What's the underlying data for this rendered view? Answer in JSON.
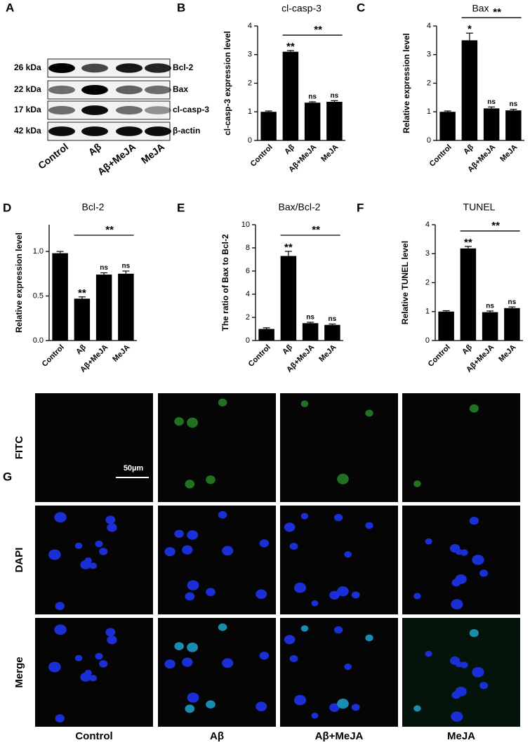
{
  "panels": [
    "A",
    "B",
    "C",
    "D",
    "E",
    "F",
    "G"
  ],
  "blot": {
    "kda": [
      "26 kDa",
      "22 kDa",
      "17 kDa",
      "42 kDa"
    ],
    "proteins": [
      "Bcl-2",
      "Bax",
      "cl-casp-3",
      "β-actin"
    ],
    "lanes": [
      "Control",
      "Aβ",
      "Aβ+MeJA",
      "MeJA"
    ]
  },
  "chart_data": [
    {
      "type": "bar",
      "title": "cl-casp-3",
      "y_label": "cl-casp-3 expression level",
      "categories": [
        "Control",
        "Aβ",
        "Aβ+MeJA",
        "MeJA"
      ],
      "values": [
        1.0,
        3.1,
        1.32,
        1.35
      ],
      "errors": [
        0.03,
        0.04,
        0.03,
        0.04
      ],
      "significance": [
        null,
        "**",
        "ns",
        "ns"
      ],
      "bracket_label": "**",
      "color": "#000000",
      "ylim": [
        0,
        4
      ],
      "yticks": [
        0,
        1,
        2,
        3,
        4
      ]
    },
    {
      "type": "bar",
      "title": "Bax",
      "y_label": "Relative expression level",
      "categories": [
        "Control",
        "Aβ",
        "Aβ+MeJA",
        "MeJA"
      ],
      "values": [
        1.0,
        3.5,
        1.12,
        1.05
      ],
      "errors": [
        0.03,
        0.25,
        0.05,
        0.04
      ],
      "significance": [
        null,
        "*",
        "ns",
        "ns"
      ],
      "bracket_label": "**",
      "color": "#000000",
      "ylim": [
        0,
        4
      ],
      "yticks": [
        0,
        1,
        2,
        3,
        4
      ]
    },
    {
      "type": "bar",
      "title": "Bcl-2",
      "y_label": "Relative expression level",
      "categories": [
        "Control",
        "Aβ",
        "Aβ+MeJA",
        "MeJA"
      ],
      "values": [
        0.98,
        0.47,
        0.74,
        0.75
      ],
      "errors": [
        0.02,
        0.02,
        0.02,
        0.03
      ],
      "significance": [
        null,
        "**",
        "ns",
        "ns"
      ],
      "bracket_label": "**",
      "color": "#000000",
      "ylim": [
        0,
        1.3
      ],
      "yticks": [
        {
          "value": 0,
          "label": "0.0"
        },
        0.5,
        {
          "value": 1,
          "label": "1.0"
        }
      ]
    },
    {
      "type": "bar",
      "title": "Bax/Bcl-2",
      "y_label": "The ratio of Bax to Bcl-2",
      "categories": [
        "Control",
        "Aβ",
        "Aβ+MeJA",
        "MeJA"
      ],
      "values": [
        1.0,
        7.3,
        1.5,
        1.35
      ],
      "errors": [
        0.1,
        0.4,
        0.08,
        0.08
      ],
      "significance": [
        null,
        "**",
        "ns",
        "ns"
      ],
      "bracket_label": "**",
      "color": "#000000",
      "ylim": [
        0,
        10
      ],
      "yticks": [
        0,
        2,
        4,
        6,
        8,
        10
      ]
    },
    {
      "type": "bar",
      "title": "TUNEL",
      "y_label": "Relative TUNEL level",
      "categories": [
        "Control",
        "Aβ",
        "Aβ+MeJA",
        "MeJA"
      ],
      "values": [
        1.0,
        3.18,
        0.98,
        1.12
      ],
      "errors": [
        0.03,
        0.07,
        0.04,
        0.04
      ],
      "significance": [
        null,
        "**",
        "ns",
        "ns"
      ],
      "bracket_label": "**",
      "color": "#000000",
      "ylim": [
        0,
        4
      ],
      "yticks": [
        0,
        1,
        2,
        3,
        4
      ]
    }
  ],
  "microscopy": {
    "rows": [
      "FITC",
      "DAPI",
      "Merge"
    ],
    "columns": [
      "Control",
      "Aβ",
      "Aβ+MeJA",
      "MeJA"
    ],
    "scale_bar": "50µm"
  }
}
